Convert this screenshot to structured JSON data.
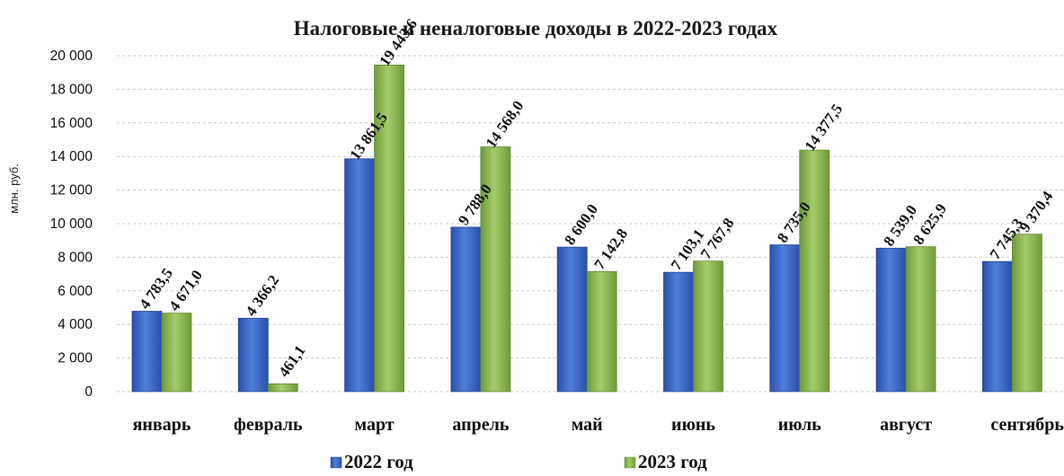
{
  "chart_data": {
    "type": "bar",
    "title": "Налоговые и неналоговые доходы в 2022-2023 годах",
    "ylabel": "млн. руб.",
    "xlabel": "",
    "ylim": [
      0,
      20000
    ],
    "yticks": [
      0,
      2000,
      4000,
      6000,
      8000,
      10000,
      12000,
      14000,
      16000,
      18000,
      20000
    ],
    "ytick_labels": [
      "0",
      "2 000",
      "4 000",
      "6 000",
      "8 000",
      "10 000",
      "12 000",
      "14 000",
      "16 000",
      "18 000",
      "20 000"
    ],
    "grid": true,
    "legend_position": "bottom",
    "categories": [
      "январь",
      "февраль",
      "март",
      "апрель",
      "май",
      "июнь",
      "июль",
      "август",
      "сентябрь"
    ],
    "series": [
      {
        "name": "2022 год",
        "color": "#3a64c4",
        "values": [
          4783.5,
          4366.2,
          13861.5,
          9788.0,
          8600.0,
          7103.1,
          8735.0,
          8539.0,
          7745.3
        ],
        "labels": [
          "4 783,5",
          "4 366,2",
          "13 861,5",
          "9 788,0",
          "8 600,0",
          "7 103,1",
          "8 735,0",
          "8 539,0",
          "7 745,3"
        ]
      },
      {
        "name": "2023 год",
        "color": "#8fba52",
        "values": [
          4671.0,
          461.1,
          19443.6,
          14568.0,
          7142.8,
          7767.8,
          14377.5,
          8625.9,
          9370.4
        ],
        "labels": [
          "4 671,0",
          "461,1",
          "19 443,6",
          "14 568,0",
          "7 142,8",
          "7 767,8",
          "14 377,5",
          "8 625,9",
          "9 370,4"
        ]
      }
    ]
  }
}
